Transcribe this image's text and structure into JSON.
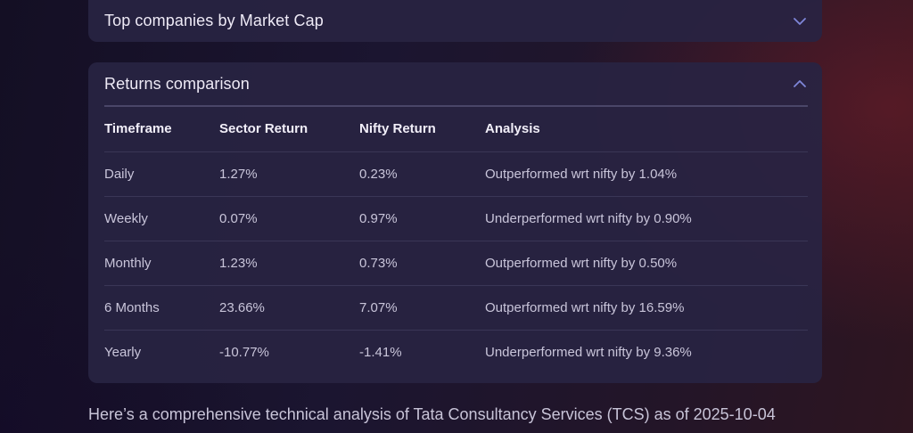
{
  "top_companies": {
    "title": "Top companies by Market Cap",
    "icon": "chevron-down-icon"
  },
  "returns": {
    "title": "Returns comparison",
    "icon": "chevron-up-icon",
    "columns": [
      "Timeframe",
      "Sector Return",
      "Nifty Return",
      "Analysis"
    ],
    "rows": [
      [
        "Daily",
        "1.27%",
        "0.23%",
        "Outperformed wrt nifty by 1.04%"
      ],
      [
        "Weekly",
        "0.07%",
        "0.97%",
        "Underperformed wrt nifty by 0.90%"
      ],
      [
        "Monthly",
        "1.23%",
        "0.73%",
        "Outperformed wrt nifty by 0.50%"
      ],
      [
        "6 Months",
        "23.66%",
        "7.07%",
        "Outperformed wrt nifty by 16.59%"
      ],
      [
        "Yearly",
        "-10.77%",
        "-1.41%",
        "Underperformed wrt nifty by 9.36%"
      ]
    ]
  },
  "footer": {
    "text": "Here’s a comprehensive technical analysis of Tata Consultancy Services (TCS) as of 2025-10-04"
  },
  "colors": {
    "card_bg": "#282442",
    "chevron": "#7f86d8",
    "divider": "#4a4668"
  }
}
